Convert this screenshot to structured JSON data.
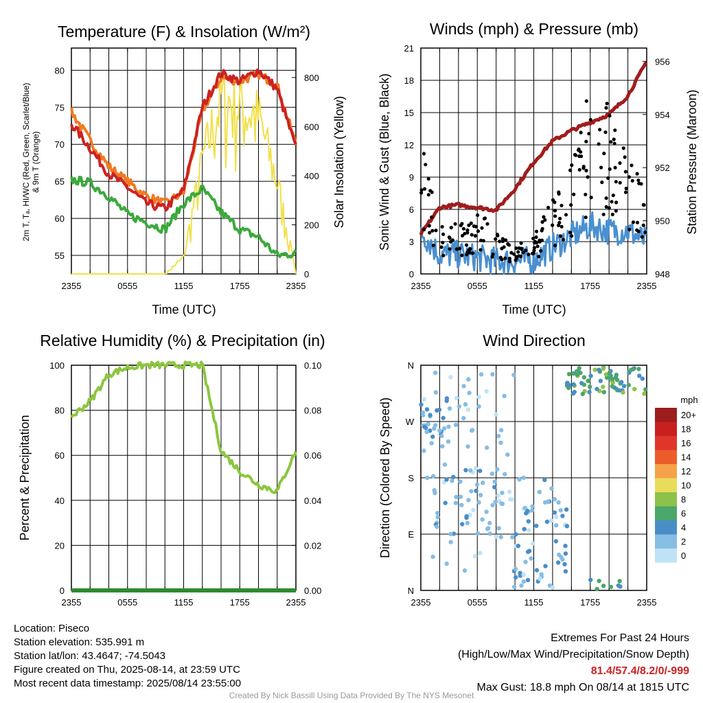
{
  "panels": {
    "temp": {
      "title": "Temperature (F) & Insolation (W/m²)",
      "ylabel_lines": [
        "2m T, Tₐ, HI/WC (Red, Green, Scarlet/Blue)",
        "& 9m T (Orange)"
      ],
      "y2label": "Solar Insolation (Yellow)",
      "xlabel": "Time (UTC)",
      "yticks": [
        "55",
        "60",
        "65",
        "70",
        "75",
        "80"
      ],
      "y2ticks": [
        "0",
        "200",
        "400",
        "600",
        "800"
      ]
    },
    "winds": {
      "title": "Winds (mph) & Pressure (mb)",
      "ylabel": "Sonic Wind & Gust (Blue, Black)",
      "y2label": "Station Pressure (Maroon)",
      "xlabel": "Time (UTC)",
      "yticks": [
        "0",
        "3",
        "6",
        "9",
        "12",
        "15",
        "18",
        "21"
      ],
      "y2ticks": [
        "948",
        "950",
        "952",
        "954",
        "956"
      ]
    },
    "rh": {
      "title": "Relative Humidity (%) & Precipitation (in)",
      "ylabel": "Percent & Precipitation",
      "yticks": [
        "0",
        "20",
        "40",
        "60",
        "80",
        "100"
      ],
      "y2ticks": [
        "0.00",
        "0.02",
        "0.04",
        "0.06",
        "0.08",
        "0.10"
      ]
    },
    "wdir": {
      "title": "Wind Direction",
      "ylabel": "Direction (Colored By Speed)",
      "yticks": [
        "N",
        "E",
        "S",
        "W",
        "N"
      ],
      "legend_title": "mph",
      "legend_labels": [
        "20+",
        "18",
        "16",
        "14",
        "12",
        "10",
        "8",
        "6",
        "4",
        "2",
        "0"
      ],
      "legend_colors": [
        "#9e1c1c",
        "#c8201e",
        "#e0362a",
        "#ec5c2a",
        "#f6a24a",
        "#e8dc5a",
        "#8cc24a",
        "#4aa66a",
        "#4a8ec8",
        "#86bde4",
        "#bfe3f6"
      ]
    }
  },
  "xticks": [
    "2355",
    "0555",
    "1155",
    "1755",
    "2355"
  ],
  "colors": {
    "t2m": "#cc2222",
    "t9m": "#f07a22",
    "dewpoint": "#3aaa3a",
    "solar": "#f2e04a",
    "wind": "#4a90d0",
    "gust": "#000000",
    "pressure": "#a01c1c",
    "rh": "#8cc63e",
    "precip": "#2e8b2e"
  },
  "info": {
    "location": "Location: Piseco",
    "elevation": "Station elevation: 535.991 m",
    "latlon": "Station lat/lon: 43.4647; -74.5043",
    "created": "Figure created on Thu, 2025-08-14, at 23:59 UTC",
    "recent": "Most recent data timestamp: 2025/08/14 23:55:00",
    "extremes_title": "Extremes For Past 24 Hours",
    "extremes_sub": "(High/Low/Max Wind/Precipitation/Snow Depth)",
    "extremes_values": "81.4/57.4/8.2/0/-999",
    "max_gust": "Max Gust: 18.8 mph On 08/14 at 1815 UTC",
    "credit": "Created By Nick Bassill Using Data Provided By The NYS Mesonet"
  },
  "chart_data": [
    {
      "type": "line",
      "title": "Temperature (F) & Insolation (W/m²)",
      "xlabel": "Time (UTC)",
      "ylabel": "2m T, Tₐ, HI/WC (Red, Green, Scarlet/Blue) & 9m T (Orange)",
      "y2label": "Solar Insolation (Yellow)",
      "x": [
        "2355",
        "0155",
        "0355",
        "0555",
        "0755",
        "0955",
        "1155",
        "1355",
        "1555",
        "1755",
        "1955",
        "2155",
        "2355"
      ],
      "ylim": [
        52.5,
        83
      ],
      "y2lim": [
        0,
        920
      ],
      "series": [
        {
          "name": "2m T (Red)",
          "values": [
            72.8,
            69.5,
            66,
            64.2,
            62,
            61.3,
            63.8,
            75,
            79.6,
            78.5,
            80,
            77.5,
            69.5
          ]
        },
        {
          "name": "9m T (Orange)",
          "values": [
            74.4,
            70.5,
            67,
            65,
            63,
            62,
            63.5,
            74.5,
            79,
            78.5,
            79.5,
            78,
            70
          ]
        },
        {
          "name": "Dewpoint (Green)",
          "values": [
            65.2,
            64.8,
            63,
            60.5,
            59.5,
            58.5,
            62,
            64,
            60.8,
            58.5,
            57.5,
            55,
            55.3
          ]
        },
        {
          "name": "Solar Insolation (Yellow)",
          "values": [
            0,
            0,
            0,
            0,
            0,
            0,
            80,
            550,
            850,
            820,
            760,
            450,
            0
          ]
        }
      ]
    },
    {
      "type": "line",
      "title": "Winds (mph) & Pressure (mb)",
      "xlabel": "Time (UTC)",
      "ylabel": "Sonic Wind & Gust (Blue, Black)",
      "y2label": "Station Pressure (Maroon)",
      "x": [
        "2355",
        "0155",
        "0355",
        "0555",
        "0755",
        "0955",
        "1155",
        "1355",
        "1555",
        "1755",
        "1955",
        "2155",
        "2355"
      ],
      "ylim": [
        0,
        21
      ],
      "y2lim": [
        948,
        956.5
      ],
      "series": [
        {
          "name": "Sonic Wind (Blue)",
          "values": [
            4,
            1.8,
            1.8,
            1.5,
            1.2,
            1.2,
            1.3,
            2.5,
            3.5,
            4.5,
            4,
            4,
            3
          ]
        },
        {
          "name": "Gust (Black)",
          "values": [
            9.5,
            3.5,
            3.5,
            4.5,
            3,
            2,
            2.5,
            5.5,
            7.5,
            13,
            12,
            9,
            6
          ]
        },
        {
          "name": "Station Pressure (Maroon)",
          "values": [
            949.5,
            950.5,
            950.6,
            950.5,
            950.4,
            951.2,
            952.2,
            953,
            953.4,
            953.7,
            954,
            954.7,
            956
          ]
        }
      ]
    },
    {
      "type": "line",
      "title": "Relative Humidity (%) & Precipitation (in)",
      "ylabel": "Percent & Precipitation",
      "x": [
        "2355",
        "0155",
        "0355",
        "0555",
        "0755",
        "0955",
        "1155",
        "1355",
        "1555",
        "1755",
        "1955",
        "2155",
        "2355"
      ],
      "ylim": [
        0,
        100
      ],
      "y2lim": [
        0,
        0.1
      ],
      "series": [
        {
          "name": "Relative Humidity",
          "values": [
            77,
            84,
            96,
            99,
            100,
            100,
            100,
            100,
            62,
            53,
            47,
            44,
            62
          ]
        },
        {
          "name": "Precipitation",
          "values": [
            0,
            0,
            0,
            0,
            0,
            0,
            0,
            0,
            0,
            0,
            0,
            0,
            0
          ]
        }
      ]
    },
    {
      "type": "scatter",
      "title": "Wind Direction",
      "ylabel": "Direction (Colored By Speed)",
      "x": [
        "2355",
        "0555",
        "1155",
        "1755",
        "2355"
      ],
      "y_categories": [
        "N",
        "E",
        "S",
        "W",
        "N"
      ],
      "legend_title": "mph",
      "legend": [
        "20+",
        "18",
        "16",
        "14",
        "12",
        "10",
        "8",
        "6",
        "4",
        "2",
        "0"
      ]
    }
  ]
}
